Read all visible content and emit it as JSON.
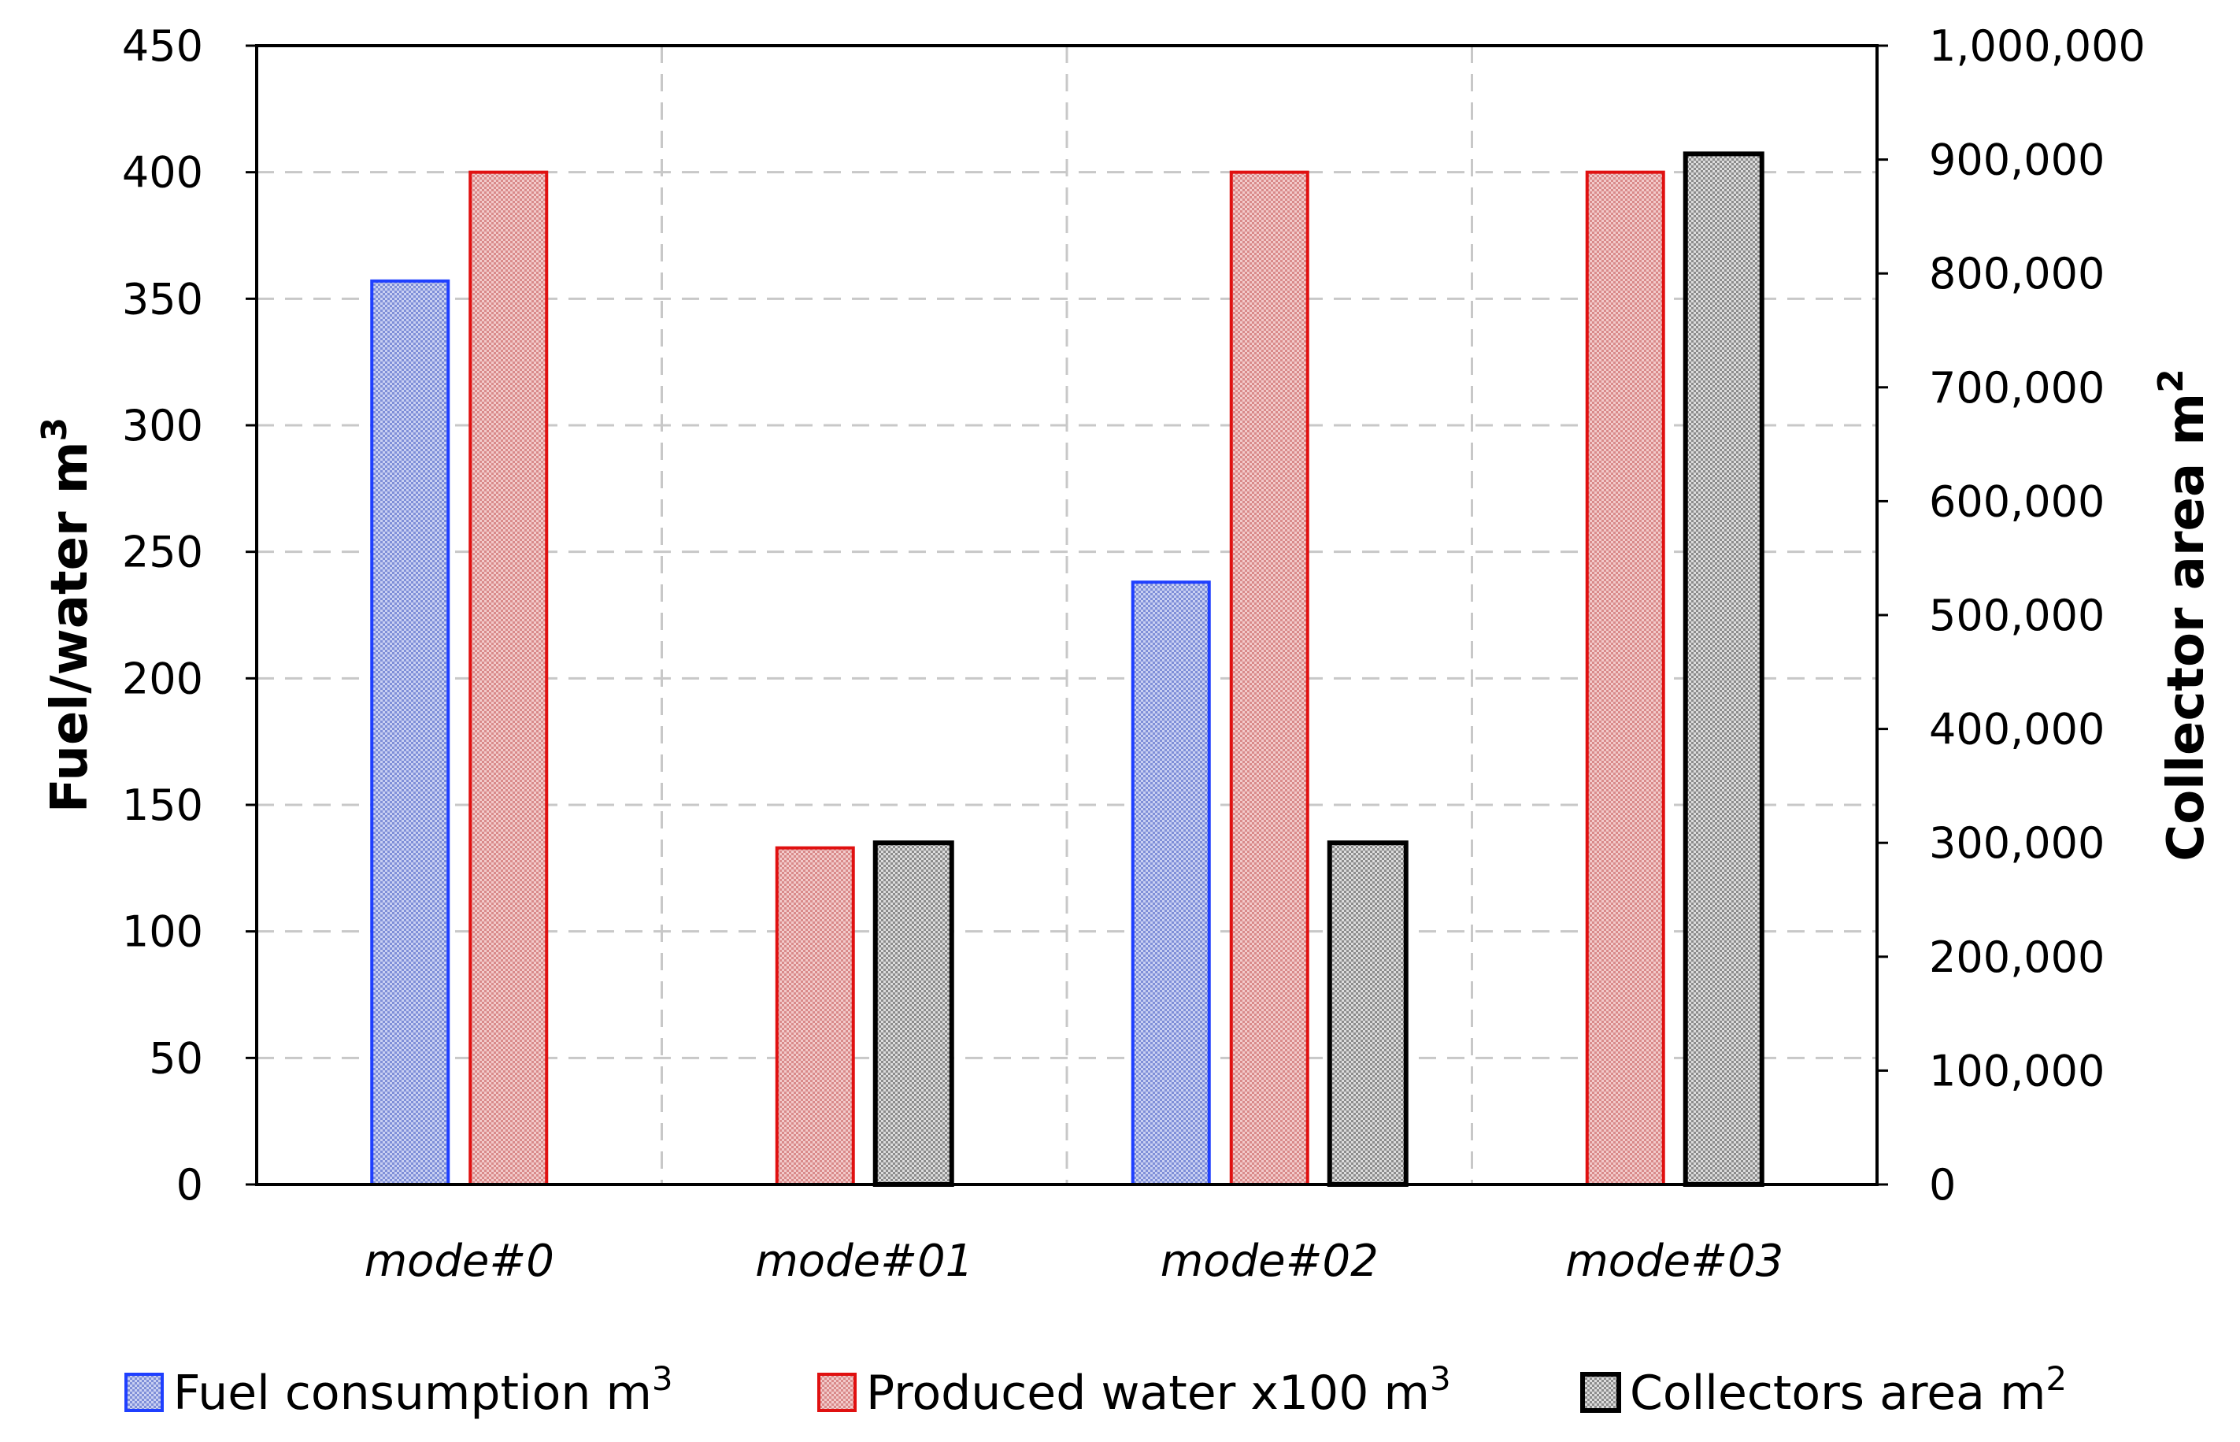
{
  "chart_data": {
    "type": "bar",
    "title": "",
    "categories": [
      "mode#0",
      "mode#01",
      "mode#02",
      "mode#03"
    ],
    "series": [
      {
        "name": "Fuel consumption",
        "unit": "m",
        "unit_sup": "3",
        "axis": "left",
        "color": "#1f3fff",
        "fill": "#a9b4e6",
        "values": [
          357,
          null,
          238,
          null
        ]
      },
      {
        "name": "Produced water x100",
        "unit": "m",
        "unit_sup": "3",
        "axis": "left",
        "color": "#e01010",
        "fill": "#e9a7a7",
        "values": [
          400,
          133,
          400,
          400
        ]
      },
      {
        "name": "Collectors area",
        "unit": "m",
        "unit_sup": "2",
        "axis": "right",
        "color": "#000000",
        "fill": "#bcbcbc",
        "values": [
          null,
          300000,
          300000,
          905000
        ]
      }
    ],
    "y_left": {
      "label": "Fuel/water m",
      "label_sup": "3",
      "min": 0,
      "max": 450,
      "ticks": [
        0,
        50,
        100,
        150,
        200,
        250,
        300,
        350,
        400,
        450
      ],
      "tick_labels": [
        "0",
        "50",
        "100",
        "150",
        "200",
        "250",
        "300",
        "350",
        "400",
        "450"
      ]
    },
    "y_right": {
      "label": "Collector area m",
      "label_sup": "2",
      "min": 0,
      "max": 1000000,
      "ticks": [
        0,
        100000,
        200000,
        300000,
        400000,
        500000,
        600000,
        700000,
        800000,
        900000,
        1000000
      ],
      "tick_labels": [
        "0",
        "100,000",
        "200,000",
        "300,000",
        "400,000",
        "500,000",
        "600,000",
        "700,000",
        "800,000",
        "900,000",
        "1,000,000"
      ]
    },
    "grid": true,
    "legend_position": "bottom"
  }
}
